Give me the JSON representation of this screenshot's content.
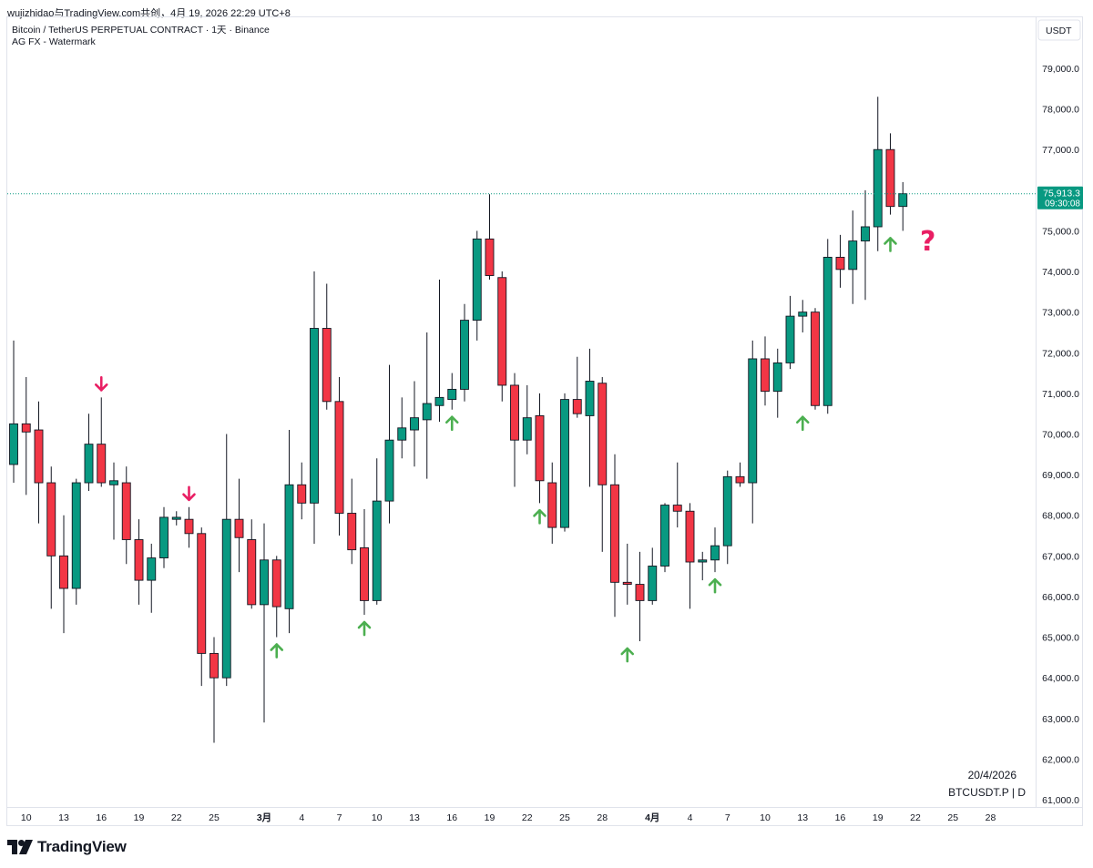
{
  "header": {
    "publish_line": "wujizhidao与TradingView.com共创，4月 19, 2026 22:29 UTC+8"
  },
  "chart_data": {
    "type": "candlestick",
    "title": "Bitcoin / TetherUS PERPETUAL CONTRACT · 1天 · Binance",
    "indicator": "AG FX - Watermark",
    "currency_label": "USDT",
    "symbol_label": "BTCUSDT.P | D",
    "date_label": "20/4/2026",
    "last_price": {
      "value": "75,913.3",
      "countdown": "09:30:08"
    },
    "y_ticks": [
      61000,
      62000,
      63000,
      64000,
      65000,
      66000,
      67000,
      68000,
      69000,
      70000,
      71000,
      72000,
      73000,
      74000,
      75000,
      76000,
      77000,
      78000,
      79000
    ],
    "y_tick_labels": [
      "61,000.0",
      "62,000.0",
      "63,000.0",
      "64,000.0",
      "65,000.0",
      "66,000.0",
      "67,000.0",
      "68,000.0",
      "69,000.0",
      "70,000.0",
      "71,000.0",
      "72,000.0",
      "73,000.0",
      "74,000.0",
      "75,000.0",
      "76,000.0",
      "77,000.0",
      "78,000.0",
      "79,000.0"
    ],
    "x_ticks": [
      {
        "label": "10",
        "index": 1,
        "bold": false
      },
      {
        "label": "13",
        "index": 4,
        "bold": false
      },
      {
        "label": "16",
        "index": 7,
        "bold": false
      },
      {
        "label": "19",
        "index": 10,
        "bold": false
      },
      {
        "label": "22",
        "index": 13,
        "bold": false
      },
      {
        "label": "25",
        "index": 16,
        "bold": false
      },
      {
        "label": "3月",
        "index": 20,
        "bold": true
      },
      {
        "label": "4",
        "index": 23,
        "bold": false
      },
      {
        "label": "7",
        "index": 26,
        "bold": false
      },
      {
        "label": "10",
        "index": 29,
        "bold": false
      },
      {
        "label": "13",
        "index": 32,
        "bold": false
      },
      {
        "label": "16",
        "index": 35,
        "bold": false
      },
      {
        "label": "19",
        "index": 38,
        "bold": false
      },
      {
        "label": "22",
        "index": 41,
        "bold": false
      },
      {
        "label": "25",
        "index": 44,
        "bold": false
      },
      {
        "label": "28",
        "index": 47,
        "bold": false
      },
      {
        "label": "4月",
        "index": 51,
        "bold": true
      },
      {
        "label": "4",
        "index": 54,
        "bold": false
      },
      {
        "label": "7",
        "index": 57,
        "bold": false
      },
      {
        "label": "10",
        "index": 60,
        "bold": false
      },
      {
        "label": "13",
        "index": 63,
        "bold": false
      },
      {
        "label": "16",
        "index": 66,
        "bold": false
      },
      {
        "label": "19",
        "index": 69,
        "bold": false
      },
      {
        "label": "22",
        "index": 72,
        "bold": false
      },
      {
        "label": "25",
        "index": 75,
        "bold": false
      },
      {
        "label": "28",
        "index": 78,
        "bold": false
      }
    ],
    "candles": [
      {
        "o": 69250,
        "h": 72300,
        "l": 68800,
        "c": 70250
      },
      {
        "o": 70250,
        "h": 71400,
        "l": 68500,
        "c": 70050
      },
      {
        "o": 70100,
        "h": 70800,
        "l": 67800,
        "c": 68800
      },
      {
        "o": 68800,
        "h": 69200,
        "l": 65700,
        "c": 67000
      },
      {
        "o": 67000,
        "h": 68000,
        "l": 65100,
        "c": 66200
      },
      {
        "o": 66200,
        "h": 68900,
        "l": 65800,
        "c": 68800
      },
      {
        "o": 68800,
        "h": 70500,
        "l": 68600,
        "c": 69750
      },
      {
        "o": 69750,
        "h": 70900,
        "l": 68700,
        "c": 68800
      },
      {
        "o": 68750,
        "h": 69300,
        "l": 67400,
        "c": 68850
      },
      {
        "o": 68800,
        "h": 69200,
        "l": 66800,
        "c": 67400
      },
      {
        "o": 67400,
        "h": 67900,
        "l": 65800,
        "c": 66400
      },
      {
        "o": 66400,
        "h": 67300,
        "l": 65600,
        "c": 66950
      },
      {
        "o": 66950,
        "h": 68200,
        "l": 66700,
        "c": 67950
      },
      {
        "o": 67900,
        "h": 68100,
        "l": 67750,
        "c": 67950
      },
      {
        "o": 67900,
        "h": 68200,
        "l": 67200,
        "c": 67550
      },
      {
        "o": 67550,
        "h": 67700,
        "l": 63800,
        "c": 64600
      },
      {
        "o": 64600,
        "h": 65000,
        "l": 62400,
        "c": 64000
      },
      {
        "o": 64000,
        "h": 70000,
        "l": 63800,
        "c": 67900
      },
      {
        "o": 67900,
        "h": 68900,
        "l": 66600,
        "c": 67450
      },
      {
        "o": 67400,
        "h": 67900,
        "l": 65700,
        "c": 65800
      },
      {
        "o": 65800,
        "h": 67800,
        "l": 62900,
        "c": 66900
      },
      {
        "o": 66900,
        "h": 67000,
        "l": 65000,
        "c": 65750
      },
      {
        "o": 65700,
        "h": 70100,
        "l": 65100,
        "c": 68750
      },
      {
        "o": 68750,
        "h": 69300,
        "l": 67900,
        "c": 68300
      },
      {
        "o": 68300,
        "h": 74000,
        "l": 67300,
        "c": 72600
      },
      {
        "o": 72600,
        "h": 73700,
        "l": 70600,
        "c": 70800
      },
      {
        "o": 70800,
        "h": 71400,
        "l": 67500,
        "c": 68050
      },
      {
        "o": 68050,
        "h": 68900,
        "l": 66800,
        "c": 67150
      },
      {
        "o": 67200,
        "h": 68150,
        "l": 65550,
        "c": 65900
      },
      {
        "o": 65900,
        "h": 69400,
        "l": 65800,
        "c": 68350
      },
      {
        "o": 68350,
        "h": 71700,
        "l": 67800,
        "c": 69850
      },
      {
        "o": 69850,
        "h": 70900,
        "l": 69400,
        "c": 70150
      },
      {
        "o": 70100,
        "h": 71300,
        "l": 69200,
        "c": 70400
      },
      {
        "o": 70350,
        "h": 72500,
        "l": 68900,
        "c": 70750
      },
      {
        "o": 70700,
        "h": 73800,
        "l": 70300,
        "c": 70900
      },
      {
        "o": 70850,
        "h": 71500,
        "l": 70600,
        "c": 71100
      },
      {
        "o": 71100,
        "h": 73200,
        "l": 70800,
        "c": 72800
      },
      {
        "o": 72800,
        "h": 75000,
        "l": 72300,
        "c": 74800
      },
      {
        "o": 74800,
        "h": 75900,
        "l": 73800,
        "c": 73900
      },
      {
        "o": 73850,
        "h": 74000,
        "l": 70800,
        "c": 71200
      },
      {
        "o": 71200,
        "h": 71500,
        "l": 68700,
        "c": 69850
      },
      {
        "o": 69850,
        "h": 71200,
        "l": 69500,
        "c": 70400
      },
      {
        "o": 70450,
        "h": 71000,
        "l": 68300,
        "c": 68850
      },
      {
        "o": 68800,
        "h": 69300,
        "l": 67300,
        "c": 67700
      },
      {
        "o": 67700,
        "h": 71000,
        "l": 67600,
        "c": 70850
      },
      {
        "o": 70850,
        "h": 71900,
        "l": 70400,
        "c": 70500
      },
      {
        "o": 70450,
        "h": 72100,
        "l": 68700,
        "c": 71300
      },
      {
        "o": 71250,
        "h": 71400,
        "l": 67100,
        "c": 68750
      },
      {
        "o": 68750,
        "h": 69500,
        "l": 65500,
        "c": 66350
      },
      {
        "o": 66350,
        "h": 67300,
        "l": 65800,
        "c": 66300
      },
      {
        "o": 66300,
        "h": 67100,
        "l": 64900,
        "c": 65900
      },
      {
        "o": 65900,
        "h": 67200,
        "l": 65800,
        "c": 66750
      },
      {
        "o": 66750,
        "h": 68300,
        "l": 66600,
        "c": 68250
      },
      {
        "o": 68250,
        "h": 69300,
        "l": 67700,
        "c": 68100
      },
      {
        "o": 68100,
        "h": 68300,
        "l": 65700,
        "c": 66850
      },
      {
        "o": 66850,
        "h": 67100,
        "l": 66400,
        "c": 66900
      },
      {
        "o": 66900,
        "h": 67700,
        "l": 66600,
        "c": 67250
      },
      {
        "o": 67250,
        "h": 69100,
        "l": 66800,
        "c": 68950
      },
      {
        "o": 68950,
        "h": 69300,
        "l": 68700,
        "c": 68800
      },
      {
        "o": 68800,
        "h": 72300,
        "l": 67800,
        "c": 71850
      },
      {
        "o": 71850,
        "h": 72400,
        "l": 70700,
        "c": 71050
      },
      {
        "o": 71050,
        "h": 72100,
        "l": 70400,
        "c": 71750
      },
      {
        "o": 71750,
        "h": 73400,
        "l": 71600,
        "c": 72900
      },
      {
        "o": 72900,
        "h": 73300,
        "l": 72500,
        "c": 73000
      },
      {
        "o": 73000,
        "h": 73100,
        "l": 70600,
        "c": 70700
      },
      {
        "o": 70700,
        "h": 74800,
        "l": 70500,
        "c": 74350
      },
      {
        "o": 74350,
        "h": 74900,
        "l": 73600,
        "c": 74050
      },
      {
        "o": 74050,
        "h": 75500,
        "l": 73200,
        "c": 74750
      },
      {
        "o": 74750,
        "h": 76000,
        "l": 73300,
        "c": 75100
      },
      {
        "o": 75100,
        "h": 78300,
        "l": 74500,
        "c": 77000
      },
      {
        "o": 77000,
        "h": 77400,
        "l": 75400,
        "c": 75600
      },
      {
        "o": 75600,
        "h": 76200,
        "l": 75000,
        "c": 75913.3
      }
    ],
    "annotations": [
      {
        "type": "arrow-down",
        "color": "#e91e63",
        "index": 7,
        "price": 70900
      },
      {
        "type": "arrow-down",
        "color": "#e91e63",
        "index": 14,
        "price": 68200
      },
      {
        "type": "arrow-up",
        "color": "#4caf50",
        "index": 21,
        "price": 65000
      },
      {
        "type": "arrow-up",
        "color": "#4caf50",
        "index": 28,
        "price": 65550
      },
      {
        "type": "arrow-up",
        "color": "#4caf50",
        "index": 35,
        "price": 70600
      },
      {
        "type": "arrow-up",
        "color": "#4caf50",
        "index": 42,
        "price": 68300
      },
      {
        "type": "arrow-up",
        "color": "#4caf50",
        "index": 49,
        "price": 64900
      },
      {
        "type": "arrow-up",
        "color": "#4caf50",
        "index": 56,
        "price": 66600
      },
      {
        "type": "arrow-up",
        "color": "#4caf50",
        "index": 63,
        "price": 70600
      },
      {
        "type": "arrow-up",
        "color": "#4caf50",
        "index": 70,
        "price": 75000
      },
      {
        "type": "question",
        "color": "#e91e63",
        "index": 73,
        "price": 74700,
        "text": "?"
      }
    ],
    "colors": {
      "up": "#089981",
      "down": "#f23645",
      "up_border": "#000000",
      "down_border": "#000000",
      "price_line": "#089981",
      "grid": "#f0f3fa"
    }
  },
  "brand": {
    "logo_text": "TradingView"
  }
}
